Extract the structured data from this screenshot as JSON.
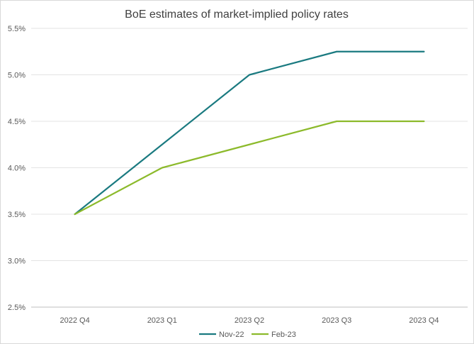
{
  "chart_data": {
    "type": "line",
    "title": "BoE estimates of market-implied policy rates",
    "categories": [
      "2022 Q4",
      "2023 Q1",
      "2023 Q2",
      "2023 Q3",
      "2023 Q4"
    ],
    "ylim": [
      2.5,
      5.5
    ],
    "yticks": [
      "2.5%",
      "3.0%",
      "3.5%",
      "4.0%",
      "4.5%",
      "5.0%",
      "5.5%"
    ],
    "ytick_values": [
      2.5,
      3.0,
      3.5,
      4.0,
      4.5,
      5.0,
      5.5
    ],
    "grid": true,
    "legend_position": "bottom",
    "series": [
      {
        "name": "Nov-22",
        "color": "#1a7a80",
        "values": [
          3.5,
          4.25,
          5.0,
          5.25,
          5.25
        ]
      },
      {
        "name": "Feb-23",
        "color": "#8cba2b",
        "values": [
          3.5,
          4.0,
          4.25,
          4.5,
          4.5
        ]
      }
    ]
  }
}
